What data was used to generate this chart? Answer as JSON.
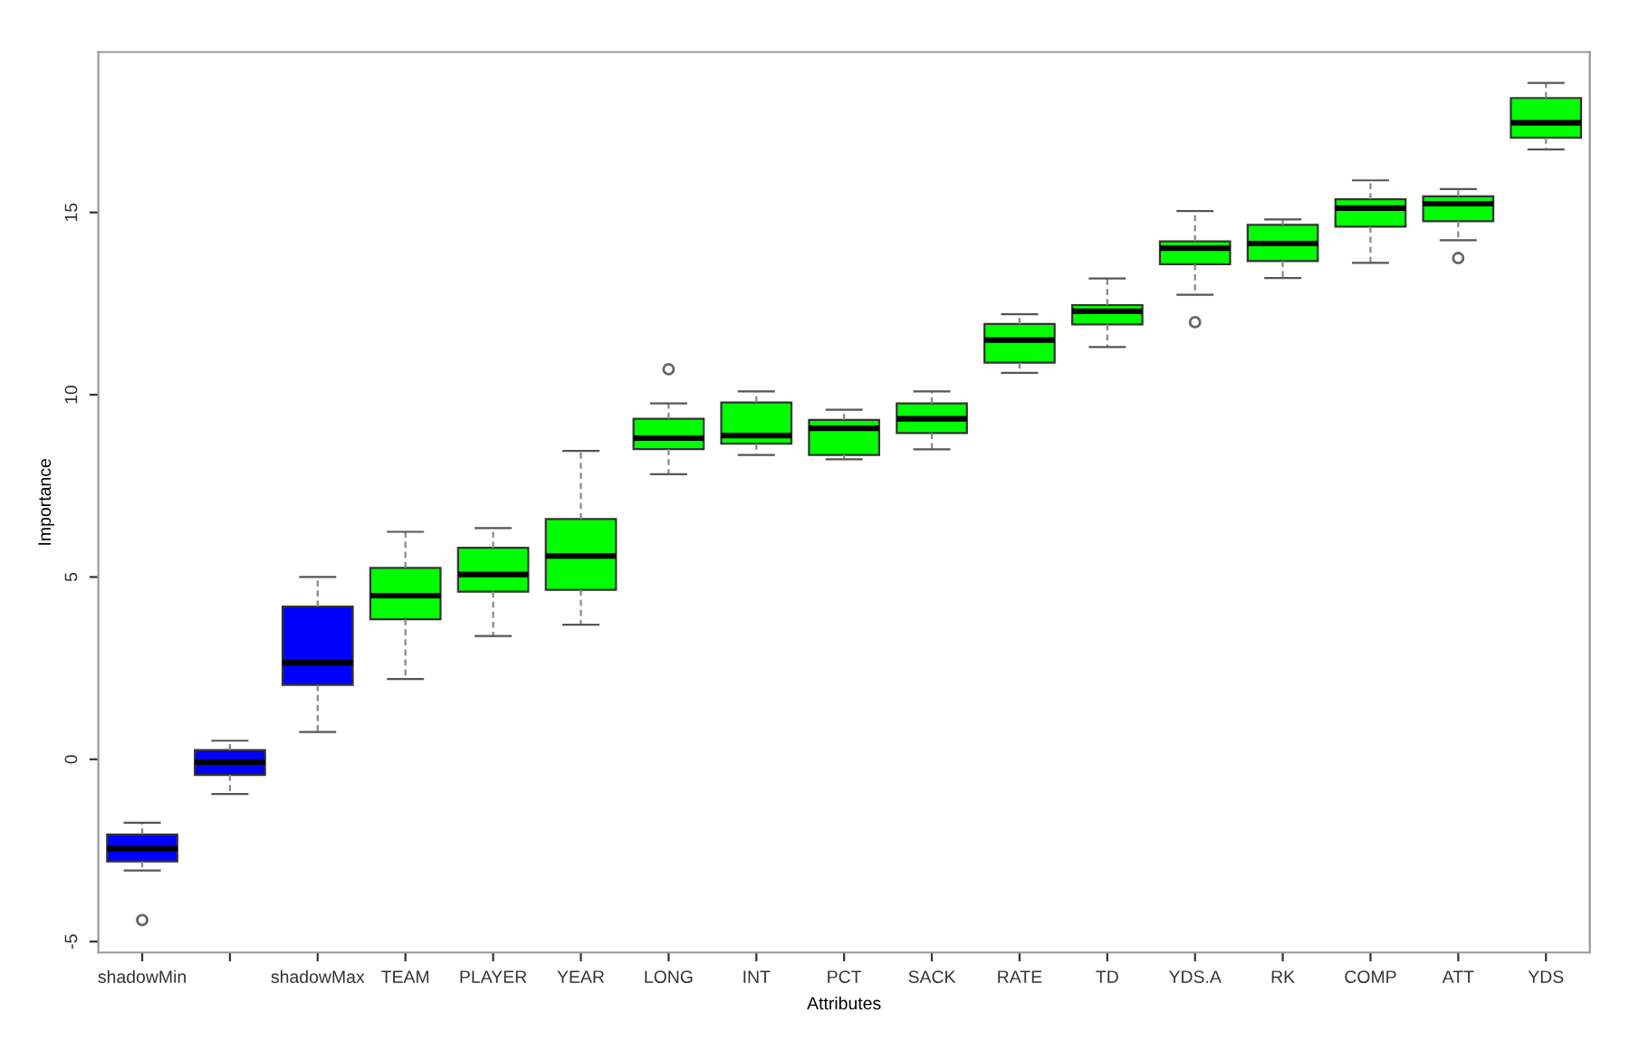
{
  "chart_data": {
    "type": "box",
    "xlabel": "Attributes",
    "ylabel": "Importance",
    "categories": [
      "shadowMin",
      null,
      "shadowMax",
      "TEAM",
      "PLAYER",
      "YEAR",
      "LONG",
      "INT",
      "PCT",
      "SACK",
      "RATE",
      "TD",
      "YDS.A",
      "RK",
      "COMP",
      "ATT",
      "YDS"
    ],
    "colors": [
      "#0000ff",
      "#0000ff",
      "#0000ff",
      "#00ff00",
      "#00ff00",
      "#00ff00",
      "#00ff00",
      "#00ff00",
      "#00ff00",
      "#00ff00",
      "#00ff00",
      "#00ff00",
      "#00ff00",
      "#00ff00",
      "#00ff00",
      "#00ff00",
      "#00ff00"
    ],
    "boxes": [
      {
        "low": -3.05,
        "q1": -2.8,
        "median": -2.45,
        "q3": -2.06,
        "high": -1.74,
        "outliers": [
          -4.41
        ]
      },
      {
        "low": -0.95,
        "q1": -0.43,
        "median": -0.08,
        "q3": 0.25,
        "high": 0.51
      },
      {
        "low": 0.75,
        "q1": 2.04,
        "median": 2.65,
        "q3": 4.19,
        "high": 5.0
      },
      {
        "low": 2.2,
        "q1": 3.84,
        "median": 4.49,
        "q3": 5.25,
        "high": 6.24
      },
      {
        "low": 3.38,
        "q1": 4.6,
        "median": 5.07,
        "q3": 5.8,
        "high": 6.34
      },
      {
        "low": 3.69,
        "q1": 4.65,
        "median": 5.58,
        "q3": 6.59,
        "high": 8.46
      },
      {
        "low": 7.82,
        "q1": 8.51,
        "median": 8.81,
        "q3": 9.34,
        "high": 9.76,
        "outliers": [
          10.7
        ]
      },
      {
        "low": 8.35,
        "q1": 8.66,
        "median": 8.88,
        "q3": 9.79,
        "high": 10.09
      },
      {
        "low": 8.23,
        "q1": 8.35,
        "median": 9.08,
        "q3": 9.31,
        "high": 9.59
      },
      {
        "low": 8.5,
        "q1": 8.95,
        "median": 9.34,
        "q3": 9.76,
        "high": 10.09
      },
      {
        "low": 10.6,
        "q1": 10.88,
        "median": 11.5,
        "q3": 11.94,
        "high": 12.21
      },
      {
        "low": 11.31,
        "q1": 11.93,
        "median": 12.29,
        "q3": 12.46,
        "high": 13.19
      },
      {
        "low": 12.74,
        "q1": 13.58,
        "median": 14.02,
        "q3": 14.21,
        "high": 15.04,
        "outliers": [
          11.99
        ]
      },
      {
        "low": 13.2,
        "q1": 13.67,
        "median": 14.15,
        "q3": 14.66,
        "high": 14.81
      },
      {
        "low": 13.62,
        "q1": 14.61,
        "median": 15.12,
        "q3": 15.36,
        "high": 15.88
      },
      {
        "low": 14.24,
        "q1": 14.76,
        "median": 15.24,
        "q3": 15.44,
        "high": 15.64,
        "outliers": [
          13.75
        ]
      },
      {
        "low": 16.73,
        "q1": 17.05,
        "median": 17.46,
        "q3": 18.14,
        "high": 18.55
      }
    ],
    "ylim": [
      -5.3,
      19.4
    ],
    "yticks": [
      -5,
      0,
      5,
      10,
      15
    ]
  }
}
